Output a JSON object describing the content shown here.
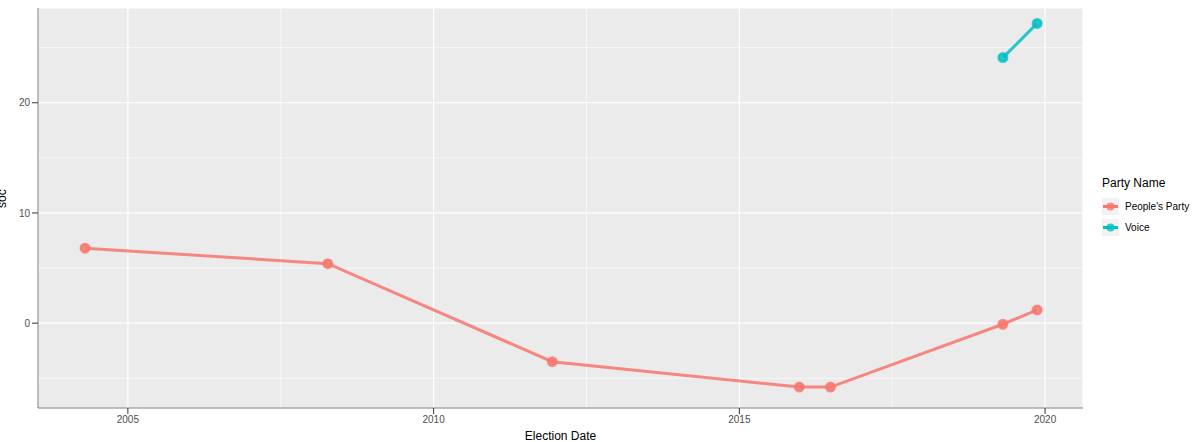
{
  "chart_data": {
    "type": "line",
    "x_label": "Election Date",
    "y_label": "soc",
    "legend_title": "Party Name",
    "xlim": [
      2003.53,
      2020.62
    ],
    "xticks": [
      2005,
      2010,
      2015,
      2020
    ],
    "ylim": [
      -7.7,
      28.6
    ],
    "yticks": [
      0,
      10,
      20
    ],
    "grid": true,
    "legend": "right",
    "marker": "circle",
    "series": [
      {
        "name": "People's Party",
        "color": "#F8766D",
        "x": [
          2004.3,
          2008.27,
          2011.94,
          2015.98,
          2016.49,
          2019.31,
          2019.87
        ],
        "values": [
          6.8,
          5.4,
          -3.5,
          -5.8,
          -5.8,
          -0.1,
          1.2
        ]
      },
      {
        "name": "Voice",
        "color": "#00BFC4",
        "x": [
          2019.31,
          2019.87
        ],
        "values": [
          24.1,
          27.2
        ]
      }
    ]
  }
}
